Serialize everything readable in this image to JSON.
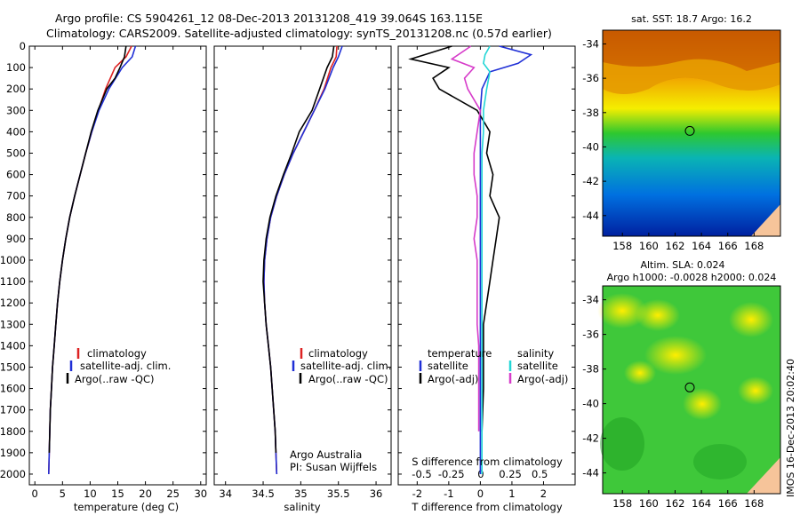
{
  "header": {
    "line1": "Argo profile: CS 5904261_12 08-Dec-2013 20131208_419 39.064S 163.115E",
    "line2": "Climatology: CARS2009. Satellite-adjusted climatology: synTS_20131208.nc (0.57d earlier)"
  },
  "colors": {
    "climatology": "#dd2222",
    "satellite": "#1f2fd6",
    "argo": "#000000",
    "argo_adj_salinity": "#d63bc9",
    "satellite_salinity": "#22d6d6"
  },
  "chart_data": [
    {
      "type": "line",
      "id": "temperature",
      "xlabel": "temperature (deg C)",
      "xlim": [
        -1,
        31
      ],
      "ylim": [
        2050,
        0
      ],
      "xticks": [
        "0",
        "5",
        "10",
        "15",
        "20",
        "25",
        "30"
      ],
      "yticks": [
        "0",
        "100",
        "200",
        "300",
        "400",
        "500",
        "600",
        "700",
        "800",
        "900",
        "1000",
        "1100",
        "1200",
        "1300",
        "1400",
        "1500",
        "1600",
        "1700",
        "1800",
        "1900",
        "2000"
      ],
      "legend": [
        "climatology",
        "satellite-adj. clim.",
        "Argo(..raw -QC)"
      ],
      "series": [
        {
          "name": "climatology",
          "color_key": "climatology",
          "x": [
            17.5,
            16.5,
            14.5,
            12.8,
            11.5,
            10.3,
            9.2,
            8.2,
            7.2,
            6.3,
            5.6,
            5.0,
            4.5,
            4.1,
            3.8,
            3.5,
            3.2,
            3.0,
            2.8,
            2.7,
            2.6,
            2.5
          ],
          "y": [
            0,
            50,
            100,
            200,
            300,
            400,
            500,
            600,
            700,
            800,
            900,
            1000,
            1100,
            1200,
            1300,
            1400,
            1500,
            1600,
            1700,
            1800,
            1900,
            2000
          ]
        },
        {
          "name": "satellite-adj. clim.",
          "color_key": "satellite",
          "x": [
            18.2,
            17.6,
            15.8,
            13.4,
            11.6,
            10.3,
            9.2,
            8.2,
            7.2,
            6.3,
            5.6,
            5.0,
            4.5,
            4.1,
            3.8,
            3.5,
            3.2,
            3.0,
            2.8,
            2.7,
            2.6,
            2.5
          ],
          "y": [
            0,
            50,
            100,
            200,
            300,
            400,
            500,
            600,
            700,
            800,
            900,
            1000,
            1100,
            1200,
            1300,
            1400,
            1500,
            1600,
            1700,
            1800,
            1900,
            2000
          ]
        },
        {
          "name": "Argo(..raw -QC)",
          "color_key": "argo",
          "x": [
            16.5,
            16.2,
            15.4,
            14.5,
            13.0,
            11.4,
            10.2,
            9.2,
            8.2,
            7.2,
            6.3,
            5.6,
            5.0,
            4.5,
            4.1,
            3.8,
            3.5,
            3.2,
            3.0,
            2.8,
            2.7,
            2.6
          ],
          "y": [
            0,
            50,
            100,
            150,
            200,
            300,
            400,
            500,
            600,
            700,
            800,
            900,
            1000,
            1100,
            1200,
            1300,
            1400,
            1500,
            1600,
            1700,
            1800,
            1900
          ]
        }
      ]
    },
    {
      "type": "line",
      "id": "salinity",
      "xlabel": "salinity",
      "xlim": [
        33.85,
        36.2
      ],
      "ylim": [
        2050,
        0
      ],
      "xticks": [
        "34",
        "34.5",
        "35",
        "35.5",
        "36"
      ],
      "yticks": [],
      "legend": [
        "climatology",
        "satellite-adj. clim.",
        "Argo(..raw -QC)"
      ],
      "annotation": [
        "Argo Australia",
        "PI: Susan Wijffels"
      ],
      "series": [
        {
          "name": "climatology",
          "color_key": "climatology",
          "x": [
            35.48,
            35.47,
            35.4,
            35.31,
            35.18,
            35.04,
            34.9,
            34.78,
            34.68,
            34.6,
            34.55,
            34.52,
            34.51,
            34.52,
            34.54,
            34.57,
            34.6,
            34.62,
            34.64,
            34.66,
            34.67,
            34.68
          ],
          "y": [
            0,
            50,
            100,
            200,
            300,
            400,
            500,
            600,
            700,
            800,
            900,
            1000,
            1100,
            1200,
            1300,
            1400,
            1500,
            1600,
            1700,
            1800,
            1900,
            2000
          ]
        },
        {
          "name": "satellite-adj. clim.",
          "color_key": "satellite",
          "x": [
            35.55,
            35.5,
            35.43,
            35.32,
            35.18,
            35.04,
            34.9,
            34.78,
            34.68,
            34.6,
            34.55,
            34.52,
            34.51,
            34.52,
            34.54,
            34.57,
            34.6,
            34.62,
            34.64,
            34.66,
            34.67,
            34.68
          ],
          "y": [
            0,
            50,
            100,
            200,
            300,
            400,
            500,
            600,
            700,
            800,
            900,
            1000,
            1100,
            1200,
            1300,
            1400,
            1500,
            1600,
            1700,
            1800,
            1900,
            2000
          ]
        },
        {
          "name": "Argo(..raw -QC)",
          "color_key": "argo",
          "x": [
            35.44,
            35.42,
            35.35,
            35.25,
            35.15,
            34.98,
            34.88,
            34.77,
            34.67,
            34.59,
            34.54,
            34.51,
            34.5,
            34.52,
            34.54,
            34.57,
            34.6,
            34.62,
            34.64,
            34.66,
            34.67
          ],
          "y": [
            0,
            50,
            100,
            200,
            300,
            400,
            500,
            600,
            700,
            800,
            900,
            1000,
            1100,
            1200,
            1300,
            1400,
            1500,
            1600,
            1700,
            1800,
            1900
          ]
        }
      ]
    },
    {
      "type": "line",
      "id": "difference",
      "xlabel": "T difference from climatology",
      "xlabel2": "S difference from climatology",
      "xlim": [
        -2.6,
        3.0
      ],
      "ylim": [
        2050,
        0
      ],
      "xticks": [
        "-2",
        "-1",
        "0",
        "1",
        "2"
      ],
      "xticks2": [
        "-0.5",
        "-0.25",
        "0",
        "0.25",
        "0.5"
      ],
      "legend_heads": [
        "temperature",
        "salinity"
      ],
      "legend": [
        "satellite",
        "Argo(-adj)",
        "satellite",
        "Argo(-adj)"
      ],
      "series": [
        {
          "name": "satellite",
          "color_key": "satellite",
          "x": [
            0.6,
            1.6,
            1.2,
            0.3,
            0.05,
            0.0,
            0.0,
            0.0,
            0.0,
            0.0,
            0.0,
            0.0,
            0.0,
            0.0,
            0.0,
            0.0,
            0.0,
            0.0,
            0.0,
            0.0,
            0.0
          ],
          "y": [
            0,
            40,
            80,
            120,
            200,
            300,
            400,
            500,
            600,
            700,
            800,
            900,
            1000,
            1100,
            1200,
            1300,
            1400,
            1500,
            1600,
            1700,
            2000
          ]
        },
        {
          "name": "Argo(-adj)",
          "color_key": "argo",
          "x": [
            -0.9,
            -2.2,
            -1.0,
            -1.5,
            -1.3,
            -0.1,
            0.3,
            0.2,
            0.4,
            0.3,
            0.6,
            0.5,
            0.4,
            0.3,
            0.2,
            0.1,
            0.1,
            0.1,
            0.1,
            0.05
          ],
          "y": [
            0,
            60,
            100,
            150,
            200,
            300,
            400,
            500,
            600,
            700,
            800,
            900,
            1000,
            1100,
            1200,
            1300,
            1400,
            1500,
            1600,
            1800
          ]
        },
        {
          "name": "satellite",
          "color_key": "satellite_salinity",
          "x": [
            0.3,
            0.15,
            0.1,
            0.3,
            0.2,
            0.1,
            0.1,
            0.05,
            0.05,
            0.05,
            0.05,
            0.05,
            0.05,
            0.05,
            0.05,
            0.05,
            0.05,
            0.05,
            0.05,
            0.05,
            0.05
          ],
          "y": [
            0,
            40,
            80,
            120,
            200,
            300,
            400,
            500,
            600,
            700,
            800,
            900,
            1000,
            1100,
            1200,
            1300,
            1400,
            1500,
            1600,
            1700,
            2000
          ]
        },
        {
          "name": "Argo(-adj)",
          "color_key": "argo_adj_salinity",
          "x": [
            -0.3,
            -0.9,
            -0.2,
            -0.5,
            -0.4,
            0.0,
            -0.1,
            -0.2,
            -0.2,
            -0.1,
            -0.1,
            -0.2,
            -0.1,
            -0.1,
            -0.1,
            -0.1,
            -0.05,
            -0.05,
            -0.05,
            -0.05
          ],
          "y": [
            0,
            60,
            100,
            150,
            200,
            300,
            400,
            500,
            600,
            700,
            800,
            900,
            1000,
            1100,
            1200,
            1300,
            1400,
            1500,
            1600,
            1800
          ]
        }
      ]
    },
    {
      "type": "heatmap",
      "id": "sst_map",
      "title": "sat. SST: 18.7  Argo: 16.2",
      "xticks": [
        "158",
        "160",
        "162",
        "164",
        "166",
        "168"
      ],
      "yticks": [
        "-34",
        "-36",
        "-38",
        "-40",
        "-42",
        "-44"
      ],
      "marker": {
        "lon": 163.115,
        "lat": -39.064
      }
    },
    {
      "type": "heatmap",
      "id": "sla_map",
      "title": "Altim. SLA: 0.024",
      "subtitle": "Argo h1000: -0.0028 h2000: 0.024",
      "xticks": [
        "158",
        "160",
        "162",
        "164",
        "166",
        "168"
      ],
      "yticks": [
        "-34",
        "-36",
        "-38",
        "-40",
        "-42",
        "-44"
      ],
      "marker": {
        "lon": 163.115,
        "lat": -39.064
      }
    }
  ],
  "footer": {
    "imos_stamp": "IMOS 16-Dec-2013 20:02:40"
  }
}
